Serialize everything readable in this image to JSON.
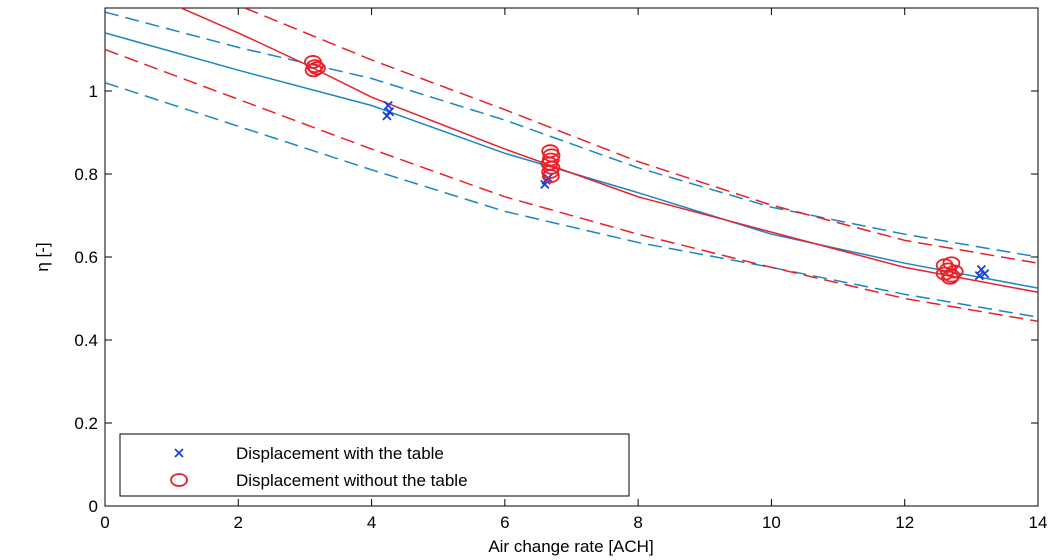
{
  "chart_data": {
    "type": "scatter",
    "title": "",
    "xlabel": "Air change rate [ACH]",
    "ylabel": "η [-]",
    "xlim": [
      0,
      14
    ],
    "ylim": [
      0,
      1.2
    ],
    "xticks": [
      0,
      2,
      4,
      6,
      8,
      10,
      12,
      14
    ],
    "yticks": [
      0,
      0.2,
      0.4,
      0.6,
      0.8,
      1
    ],
    "grid": false,
    "legend_position": "bottom-left",
    "colors": {
      "blue": "#1a3fd4",
      "cyan_line": "#1a86c4",
      "red": "#e8202a"
    },
    "series": [
      {
        "name": "Displacement with the table",
        "marker": "x",
        "color": "#1a3fd4",
        "points": [
          [
            4.25,
            0.965
          ],
          [
            4.27,
            0.95
          ],
          [
            4.23,
            0.94
          ],
          [
            6.62,
            0.785
          ],
          [
            6.6,
            0.775
          ],
          [
            6.65,
            0.79
          ],
          [
            13.15,
            0.57
          ],
          [
            13.2,
            0.56
          ],
          [
            13.12,
            0.555
          ]
        ]
      },
      {
        "name": "Displacement without the table",
        "marker": "o",
        "color": "#e8202a",
        "points": [
          [
            3.12,
            1.07
          ],
          [
            3.15,
            1.06
          ],
          [
            3.18,
            1.055
          ],
          [
            3.13,
            1.05
          ],
          [
            6.68,
            0.855
          ],
          [
            6.7,
            0.845
          ],
          [
            6.69,
            0.835
          ],
          [
            6.67,
            0.825
          ],
          [
            6.7,
            0.815
          ],
          [
            6.68,
            0.805
          ],
          [
            6.69,
            0.795
          ],
          [
            12.6,
            0.58
          ],
          [
            12.7,
            0.585
          ],
          [
            12.65,
            0.57
          ],
          [
            12.75,
            0.565
          ],
          [
            12.6,
            0.56
          ],
          [
            12.7,
            0.555
          ],
          [
            12.68,
            0.55
          ]
        ]
      }
    ],
    "fit_curves": [
      {
        "color": "#1a86c4",
        "dash": false,
        "points": [
          [
            0,
            1.14
          ],
          [
            2,
            1.05
          ],
          [
            4,
            0.965
          ],
          [
            6,
            0.85
          ],
          [
            8,
            0.755
          ],
          [
            10,
            0.655
          ],
          [
            12,
            0.585
          ],
          [
            14,
            0.525
          ]
        ]
      },
      {
        "color": "#1a86c4",
        "dash": true,
        "points": [
          [
            0,
            1.19
          ],
          [
            2,
            1.105
          ],
          [
            4,
            1.03
          ],
          [
            6,
            0.93
          ],
          [
            8,
            0.815
          ],
          [
            10,
            0.72
          ],
          [
            12,
            0.655
          ],
          [
            14,
            0.6
          ]
        ]
      },
      {
        "color": "#1a86c4",
        "dash": true,
        "points": [
          [
            0,
            1.02
          ],
          [
            2,
            0.915
          ],
          [
            4,
            0.81
          ],
          [
            6,
            0.71
          ],
          [
            8,
            0.635
          ],
          [
            10,
            0.575
          ],
          [
            12,
            0.51
          ],
          [
            14,
            0.455
          ]
        ]
      },
      {
        "color": "#e8202a",
        "dash": false,
        "points": [
          [
            0,
            1.28
          ],
          [
            2,
            1.14
          ],
          [
            3,
            1.065
          ],
          [
            4,
            0.985
          ],
          [
            6,
            0.86
          ],
          [
            8,
            0.745
          ],
          [
            10,
            0.66
          ],
          [
            12,
            0.575
          ],
          [
            14,
            0.515
          ]
        ]
      },
      {
        "color": "#e8202a",
        "dash": true,
        "points": [
          [
            2.1,
            1.2
          ],
          [
            4,
            1.075
          ],
          [
            6,
            0.955
          ],
          [
            8,
            0.83
          ],
          [
            10,
            0.725
          ],
          [
            12,
            0.64
          ],
          [
            14,
            0.585
          ]
        ]
      },
      {
        "color": "#e8202a",
        "dash": true,
        "points": [
          [
            0,
            1.1
          ],
          [
            2,
            0.98
          ],
          [
            4,
            0.86
          ],
          [
            6,
            0.745
          ],
          [
            8,
            0.655
          ],
          [
            10,
            0.575
          ],
          [
            12,
            0.5
          ],
          [
            14,
            0.445
          ]
        ]
      }
    ]
  }
}
